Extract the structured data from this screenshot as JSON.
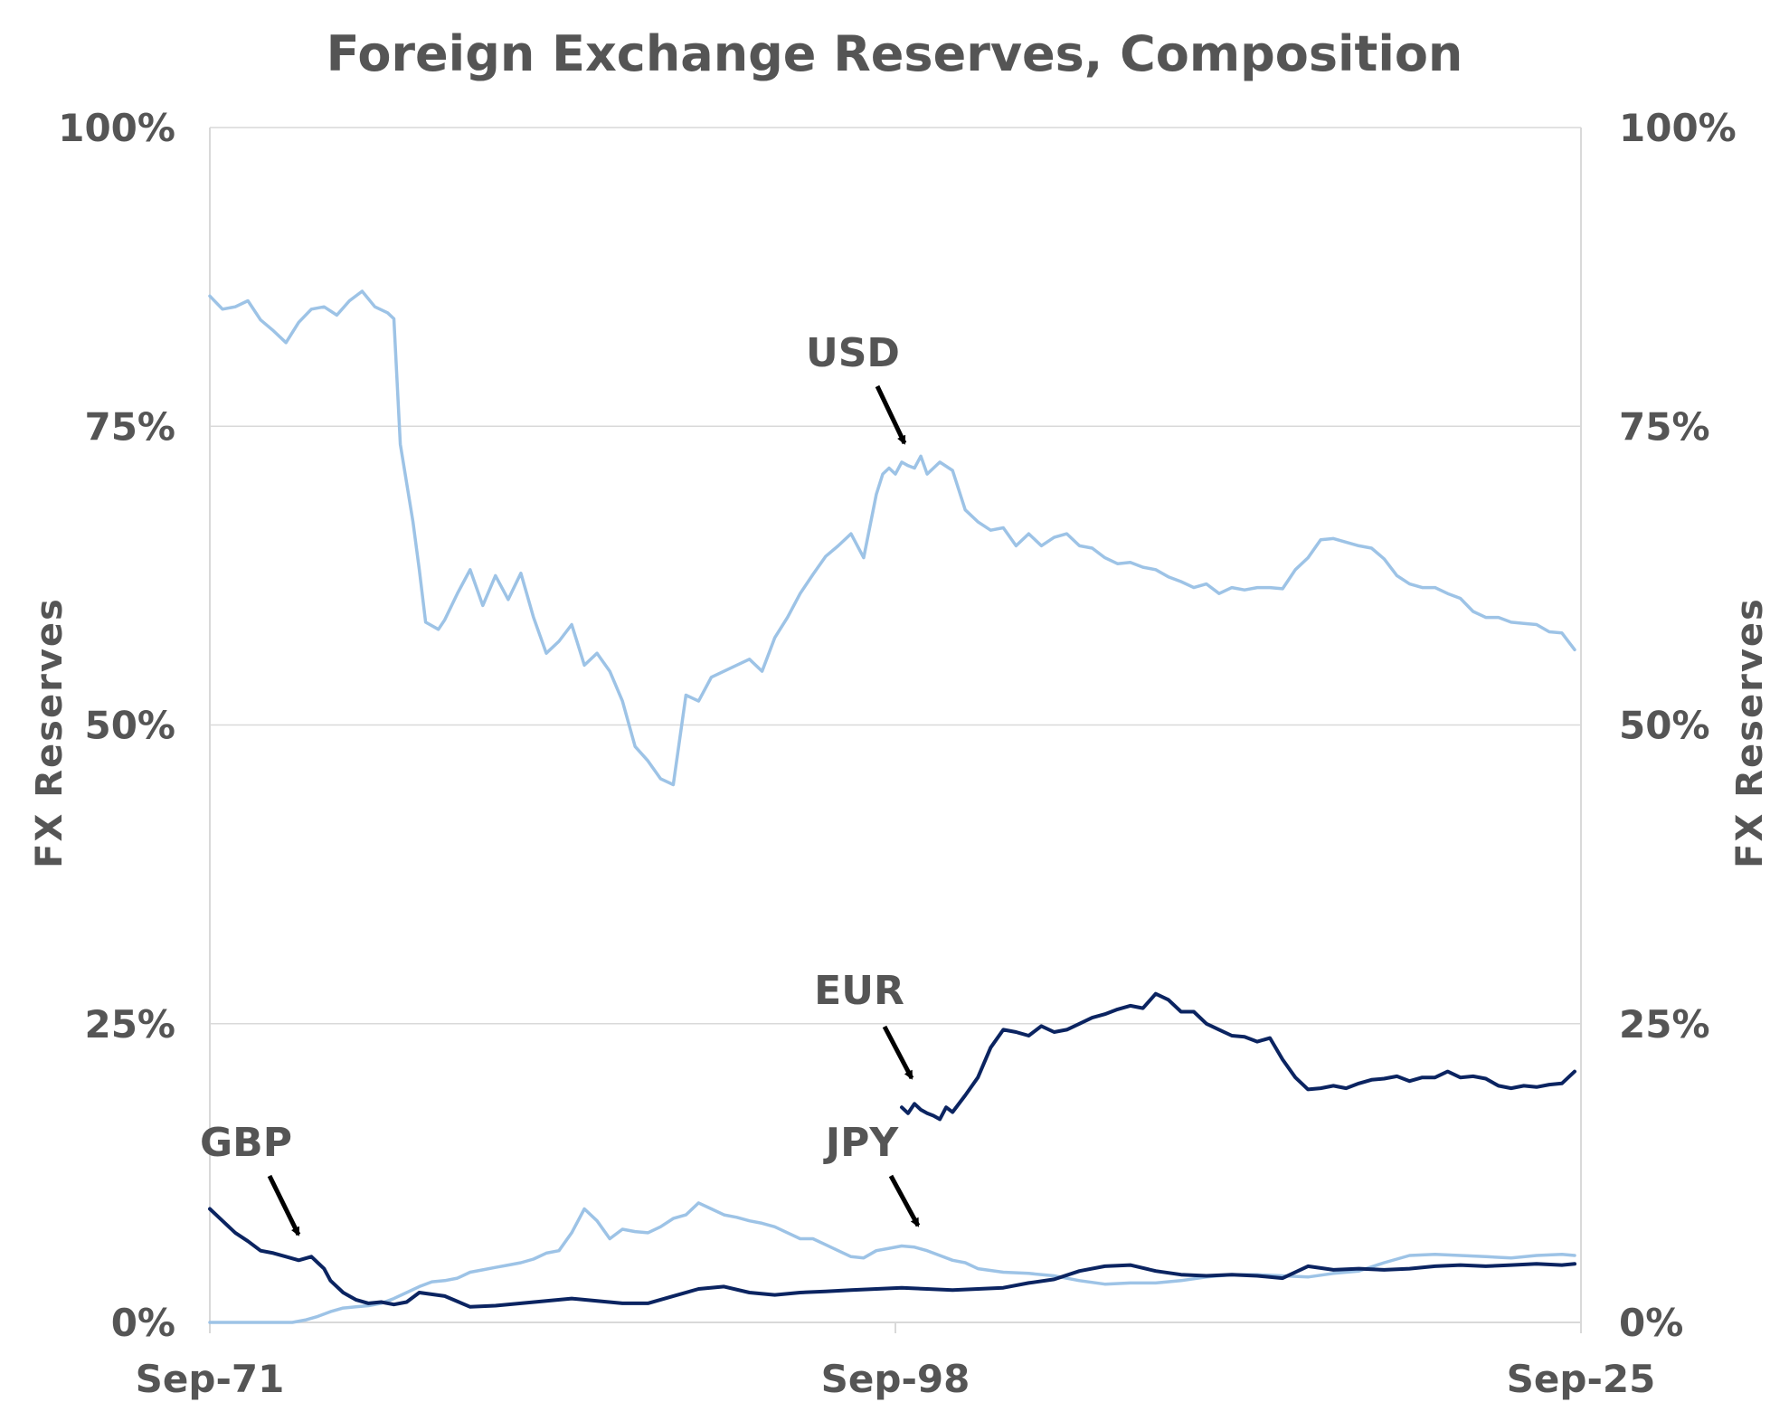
{
  "chart_data": {
    "type": "line",
    "title": "Foreign Exchange Reserves, Composition",
    "ylabel_left": "FX  Reserves",
    "ylabel_right": "FX  Reserves",
    "ylim": [
      0,
      100
    ],
    "y_ticks": [
      "0%",
      "25%",
      "50%",
      "75%",
      "100%"
    ],
    "x_ticks": [
      "Sep-71",
      "Sep-98",
      "Sep-25"
    ],
    "xlim": [
      1971.75,
      2025.75
    ],
    "colors": {
      "usd": "#9dc3e6",
      "eur": "#0b2461",
      "gbp": "#0b2461",
      "jpy": "#9dc3e6",
      "grid": "#d9d9d9",
      "text": "#555555"
    },
    "series": [
      {
        "name": "USD",
        "x": [
          1971.75,
          1972.25,
          1972.75,
          1973.25,
          1973.75,
          1974.25,
          1974.75,
          1975.25,
          1975.75,
          1976.25,
          1976.75,
          1977.25,
          1977.75,
          1978.25,
          1978.75,
          1979.0,
          1979.25,
          1979.75,
          1980.0,
          1980.25,
          1980.75,
          1981.0,
          1981.5,
          1982.0,
          1982.5,
          1983.0,
          1983.5,
          1984.0,
          1984.5,
          1985.0,
          1985.5,
          1986.0,
          1986.5,
          1987.0,
          1987.5,
          1988.0,
          1988.5,
          1989.0,
          1989.5,
          1990.0,
          1990.5,
          1991.0,
          1991.5,
          1992.0,
          1992.5,
          1993.0,
          1993.5,
          1994.0,
          1994.5,
          1995.0,
          1995.5,
          1996.0,
          1996.5,
          1997.0,
          1997.5,
          1998.0,
          1998.25,
          1998.5,
          1998.75,
          1999.0,
          1999.25,
          1999.5,
          1999.75,
          2000.0,
          2000.5,
          2001.0,
          2001.5,
          2002.0,
          2002.5,
          2003.0,
          2003.5,
          2004.0,
          2004.5,
          2005.0,
          2005.5,
          2006.0,
          2006.5,
          2007.0,
          2007.5,
          2008.0,
          2008.5,
          2009.0,
          2009.5,
          2010.0,
          2010.5,
          2011.0,
          2011.5,
          2012.0,
          2012.5,
          2013.0,
          2013.5,
          2014.0,
          2014.5,
          2015.0,
          2015.5,
          2016.0,
          2016.5,
          2017.0,
          2017.5,
          2018.0,
          2018.5,
          2019.0,
          2019.5,
          2020.0,
          2020.5,
          2021.0,
          2021.5,
          2022.0,
          2022.5,
          2023.0,
          2023.5,
          2024.0,
          2024.5,
          2025.0,
          2025.5
        ],
        "values": [
          85.9,
          84.8,
          85.0,
          85.5,
          83.9,
          83.0,
          82.0,
          83.7,
          84.8,
          85.0,
          84.3,
          85.5,
          86.3,
          85.0,
          84.5,
          84.0,
          73.5,
          67.0,
          63.0,
          58.6,
          58.0,
          58.8,
          61.0,
          63.0,
          60.0,
          62.5,
          60.5,
          62.7,
          59.0,
          56.0,
          57.0,
          58.4,
          55.0,
          56.0,
          54.5,
          52.0,
          48.2,
          47.0,
          45.5,
          45.0,
          52.5,
          52.0,
          54.0,
          54.5,
          55.0,
          55.5,
          54.5,
          57.3,
          59.0,
          61.0,
          62.6,
          64.1,
          65.0,
          66.0,
          64.0,
          69.3,
          71.0,
          71.5,
          71.0,
          72.0,
          71.7,
          71.5,
          72.5,
          71.0,
          72.0,
          71.3,
          68.0,
          67.0,
          66.3,
          66.5,
          65.0,
          66.0,
          65.0,
          65.7,
          66.0,
          65.0,
          64.8,
          64.0,
          63.5,
          63.6,
          63.2,
          63.0,
          62.4,
          62.0,
          61.5,
          61.8,
          61.0,
          61.5,
          61.3,
          61.5,
          61.5,
          61.4,
          63.0,
          64.0,
          65.5,
          65.6,
          65.3,
          65.0,
          64.8,
          63.9,
          62.5,
          61.8,
          61.5,
          61.5,
          61.0,
          60.6,
          59.5,
          59.0,
          59.0,
          58.6,
          58.5,
          58.4,
          57.8,
          57.7,
          56.3
        ]
      },
      {
        "name": "EUR",
        "x": [
          1999.0,
          1999.25,
          1999.5,
          1999.75,
          2000.0,
          2000.25,
          2000.5,
          2000.75,
          2001.0,
          2001.5,
          2002.0,
          2002.5,
          2003.0,
          2003.5,
          2004.0,
          2004.5,
          2005.0,
          2005.5,
          2006.0,
          2006.5,
          2007.0,
          2007.5,
          2008.0,
          2008.5,
          2009.0,
          2009.5,
          2010.0,
          2010.5,
          2011.0,
          2011.5,
          2012.0,
          2012.5,
          2013.0,
          2013.5,
          2014.0,
          2014.5,
          2015.0,
          2015.5,
          2016.0,
          2016.5,
          2017.0,
          2017.5,
          2018.0,
          2018.5,
          2019.0,
          2019.5,
          2020.0,
          2020.5,
          2021.0,
          2021.5,
          2022.0,
          2022.5,
          2023.0,
          2023.5,
          2024.0,
          2024.5,
          2025.0,
          2025.5
        ],
        "values": [
          18.0,
          17.5,
          18.3,
          17.8,
          17.5,
          17.3,
          17.0,
          18.0,
          17.6,
          19.0,
          20.5,
          23.0,
          24.5,
          24.3,
          24.0,
          24.8,
          24.3,
          24.5,
          25.0,
          25.5,
          25.8,
          26.2,
          26.5,
          26.3,
          27.5,
          27.0,
          26.0,
          26.0,
          25.0,
          24.5,
          24.0,
          23.9,
          23.5,
          23.8,
          22.0,
          20.5,
          19.5,
          19.6,
          19.8,
          19.6,
          20.0,
          20.3,
          20.4,
          20.6,
          20.2,
          20.5,
          20.5,
          21.0,
          20.5,
          20.6,
          20.4,
          19.8,
          19.6,
          19.8,
          19.7,
          19.9,
          20.0,
          21.0
        ]
      },
      {
        "name": "GBP",
        "x": [
          1971.75,
          1972.25,
          1972.75,
          1973.25,
          1973.75,
          1974.25,
          1974.75,
          1975.25,
          1975.75,
          1976.0,
          1976.25,
          1976.5,
          1977.0,
          1977.5,
          1978.0,
          1978.5,
          1979.0,
          1979.5,
          1980.0,
          1981.0,
          1982.0,
          1983.0,
          1984.0,
          1985.0,
          1986.0,
          1987.0,
          1988.0,
          1989.0,
          1990.0,
          1991.0,
          1992.0,
          1993.0,
          1994.0,
          1995.0,
          1996.0,
          1997.0,
          1998.0,
          1999.0,
          2000.0,
          2001.0,
          2002.0,
          2003.0,
          2004.0,
          2005.0,
          2006.0,
          2007.0,
          2008.0,
          2009.0,
          2010.0,
          2011.0,
          2012.0,
          2013.0,
          2014.0,
          2015.0,
          2016.0,
          2017.0,
          2018.0,
          2019.0,
          2020.0,
          2021.0,
          2022.0,
          2023.0,
          2024.0,
          2025.0,
          2025.5
        ],
        "values": [
          9.5,
          8.5,
          7.5,
          6.8,
          6.0,
          5.8,
          5.5,
          5.2,
          5.5,
          5.0,
          4.5,
          3.5,
          2.5,
          1.9,
          1.6,
          1.7,
          1.5,
          1.7,
          2.5,
          2.2,
          1.3,
          1.4,
          1.6,
          1.8,
          2.0,
          1.8,
          1.6,
          1.6,
          2.2,
          2.8,
          3.0,
          2.5,
          2.3,
          2.5,
          2.6,
          2.7,
          2.8,
          2.9,
          2.8,
          2.7,
          2.8,
          2.9,
          3.3,
          3.6,
          4.3,
          4.7,
          4.8,
          4.3,
          4.0,
          3.9,
          4.0,
          3.9,
          3.7,
          4.7,
          4.4,
          4.5,
          4.4,
          4.5,
          4.7,
          4.8,
          4.7,
          4.8,
          4.9,
          4.8,
          4.9
        ]
      },
      {
        "name": "JPY",
        "x": [
          1971.75,
          1972.5,
          1973.5,
          1974.5,
          1975.0,
          1975.5,
          1976.0,
          1976.5,
          1977.0,
          1977.5,
          1978.0,
          1978.5,
          1979.0,
          1979.5,
          1980.0,
          1980.5,
          1981.0,
          1981.5,
          1982.0,
          1982.5,
          1983.0,
          1983.5,
          1984.0,
          1984.5,
          1985.0,
          1985.5,
          1986.0,
          1986.5,
          1987.0,
          1987.5,
          1988.0,
          1988.5,
          1989.0,
          1989.5,
          1990.0,
          1990.5,
          1991.0,
          1991.5,
          1992.0,
          1992.5,
          1993.0,
          1993.5,
          1994.0,
          1994.5,
          1995.0,
          1995.5,
          1996.0,
          1996.5,
          1997.0,
          1997.5,
          1998.0,
          1998.5,
          1999.0,
          1999.5,
          2000.0,
          2000.5,
          2001.0,
          2001.5,
          2002.0,
          2003.0,
          2004.0,
          2005.0,
          2006.0,
          2007.0,
          2008.0,
          2009.0,
          2010.0,
          2011.0,
          2012.0,
          2013.0,
          2014.0,
          2015.0,
          2016.0,
          2017.0,
          2018.0,
          2019.0,
          2020.0,
          2021.0,
          2022.0,
          2023.0,
          2024.0,
          2025.0,
          2025.5
        ],
        "values": [
          0.0,
          0.0,
          0.0,
          0.0,
          0.0,
          0.2,
          0.5,
          0.9,
          1.2,
          1.3,
          1.4,
          1.6,
          2.0,
          2.5,
          3.0,
          3.4,
          3.5,
          3.7,
          4.2,
          4.4,
          4.6,
          4.8,
          5.0,
          5.3,
          5.8,
          6.0,
          7.5,
          9.5,
          8.5,
          7.0,
          7.8,
          7.6,
          7.5,
          8.0,
          8.7,
          9.0,
          10.0,
          9.5,
          9.0,
          8.8,
          8.5,
          8.3,
          8.0,
          7.5,
          7.0,
          7.0,
          6.5,
          6.0,
          5.5,
          5.4,
          6.0,
          6.2,
          6.4,
          6.3,
          6.0,
          5.6,
          5.2,
          5.0,
          4.5,
          4.2,
          4.1,
          3.9,
          3.5,
          3.2,
          3.3,
          3.3,
          3.5,
          3.8,
          4.0,
          4.0,
          3.9,
          3.8,
          4.1,
          4.3,
          5.0,
          5.6,
          5.7,
          5.6,
          5.5,
          5.4,
          5.6,
          5.7,
          5.6
        ]
      }
    ],
    "annotations": [
      {
        "label": "USD",
        "series": "USD",
        "x": 1998.25
      },
      {
        "label": "EUR",
        "series": "EUR",
        "x": 1999.0
      },
      {
        "label": "GBP",
        "series": "GBP",
        "x": 1975.25
      },
      {
        "label": "JPY",
        "series": "JPY",
        "x": 1998.75
      }
    ]
  }
}
